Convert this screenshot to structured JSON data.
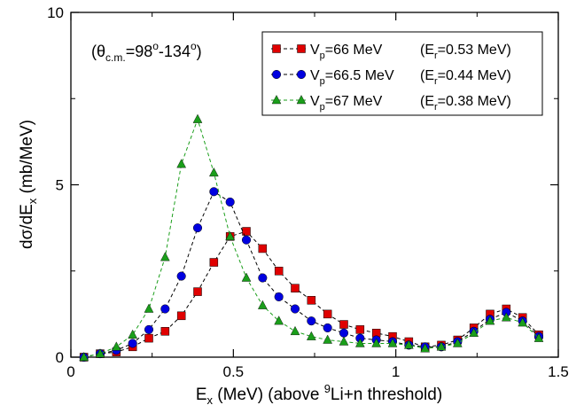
{
  "chart_data": {
    "type": "line",
    "annotation": {
      "main": "(θ",
      "sub": "c.m.",
      "mid": "=98",
      "sup1": "o",
      "mid2": "-134",
      "sup2": "o",
      "close": ")"
    },
    "xlabel": {
      "pre": "E",
      "sub": "x",
      "mid": " (MeV) (above ",
      "sup": "9",
      "post": "Li+n threshold)"
    },
    "ylabel": {
      "pre": "dσ/dE",
      "sub": "x",
      "post": " (mb/MeV)"
    },
    "xlim": [
      0,
      1.5
    ],
    "ylim": [
      0,
      10
    ],
    "x_ticks": [
      0,
      0.5,
      1,
      1.5
    ],
    "x_tick_labels": [
      "0",
      "0.5",
      "1",
      "1.5"
    ],
    "y_ticks": [
      0,
      5,
      10
    ],
    "y_tick_labels": [
      "0",
      "5",
      "10"
    ],
    "legend_position": "top-right",
    "grid": false,
    "series": [
      {
        "name": {
          "pre": "V",
          "sub": "p",
          "post": "=66 MeV",
          "paren_pre": "(E",
          "paren_sub": "r",
          "paren_post": "=0.53 MeV)"
        },
        "color": "#e00000",
        "line_color": "#000000",
        "marker": "square",
        "x": [
          0.04,
          0.09,
          0.14,
          0.19,
          0.24,
          0.29,
          0.34,
          0.39,
          0.44,
          0.49,
          0.54,
          0.59,
          0.64,
          0.69,
          0.74,
          0.79,
          0.84,
          0.89,
          0.94,
          0.99,
          1.04,
          1.09,
          1.14,
          1.19,
          1.24,
          1.29,
          1.34,
          1.39,
          1.44
        ],
        "y": [
          0.0,
          0.1,
          0.15,
          0.3,
          0.55,
          0.75,
          1.2,
          1.9,
          2.75,
          3.5,
          3.65,
          3.15,
          2.5,
          2.0,
          1.65,
          1.25,
          0.95,
          0.8,
          0.7,
          0.6,
          0.45,
          0.3,
          0.35,
          0.5,
          0.85,
          1.25,
          1.4,
          1.15,
          0.65
        ]
      },
      {
        "name": {
          "pre": "V",
          "sub": "p",
          "post": "=66.5 MeV",
          "paren_pre": "(E",
          "paren_sub": "r",
          "paren_post": "=0.44 MeV)"
        },
        "color": "#0000e0",
        "line_color": "#000000",
        "marker": "circle",
        "x": [
          0.04,
          0.09,
          0.14,
          0.19,
          0.24,
          0.29,
          0.34,
          0.39,
          0.44,
          0.49,
          0.54,
          0.59,
          0.64,
          0.69,
          0.74,
          0.79,
          0.84,
          0.89,
          0.94,
          0.99,
          1.04,
          1.09,
          1.14,
          1.19,
          1.24,
          1.29,
          1.34,
          1.39,
          1.44
        ],
        "y": [
          0.0,
          0.1,
          0.2,
          0.4,
          0.8,
          1.4,
          2.35,
          3.75,
          4.8,
          4.5,
          3.4,
          2.3,
          1.75,
          1.4,
          1.05,
          0.85,
          0.7,
          0.55,
          0.5,
          0.45,
          0.35,
          0.3,
          0.3,
          0.45,
          0.75,
          1.1,
          1.3,
          1.05,
          0.6
        ]
      },
      {
        "name": {
          "pre": "V",
          "sub": "p",
          "post": "=67 MeV",
          "paren_pre": "(E",
          "paren_sub": "r",
          "paren_post": "=0.38 MeV)"
        },
        "color": "#1a9e1a",
        "line_color": "#1a9e1a",
        "marker": "triangle",
        "x": [
          0.04,
          0.09,
          0.14,
          0.19,
          0.24,
          0.29,
          0.34,
          0.39,
          0.44,
          0.49,
          0.54,
          0.59,
          0.64,
          0.69,
          0.74,
          0.79,
          0.84,
          0.89,
          0.94,
          0.99,
          1.04,
          1.09,
          1.14,
          1.19,
          1.24,
          1.29,
          1.34,
          1.39,
          1.44
        ],
        "y": [
          0.0,
          0.1,
          0.3,
          0.65,
          1.4,
          2.9,
          5.6,
          6.9,
          5.35,
          3.5,
          2.3,
          1.5,
          1.05,
          0.75,
          0.6,
          0.5,
          0.45,
          0.4,
          0.4,
          0.4,
          0.35,
          0.25,
          0.3,
          0.4,
          0.7,
          1.05,
          1.15,
          1.0,
          0.55
        ]
      }
    ]
  }
}
